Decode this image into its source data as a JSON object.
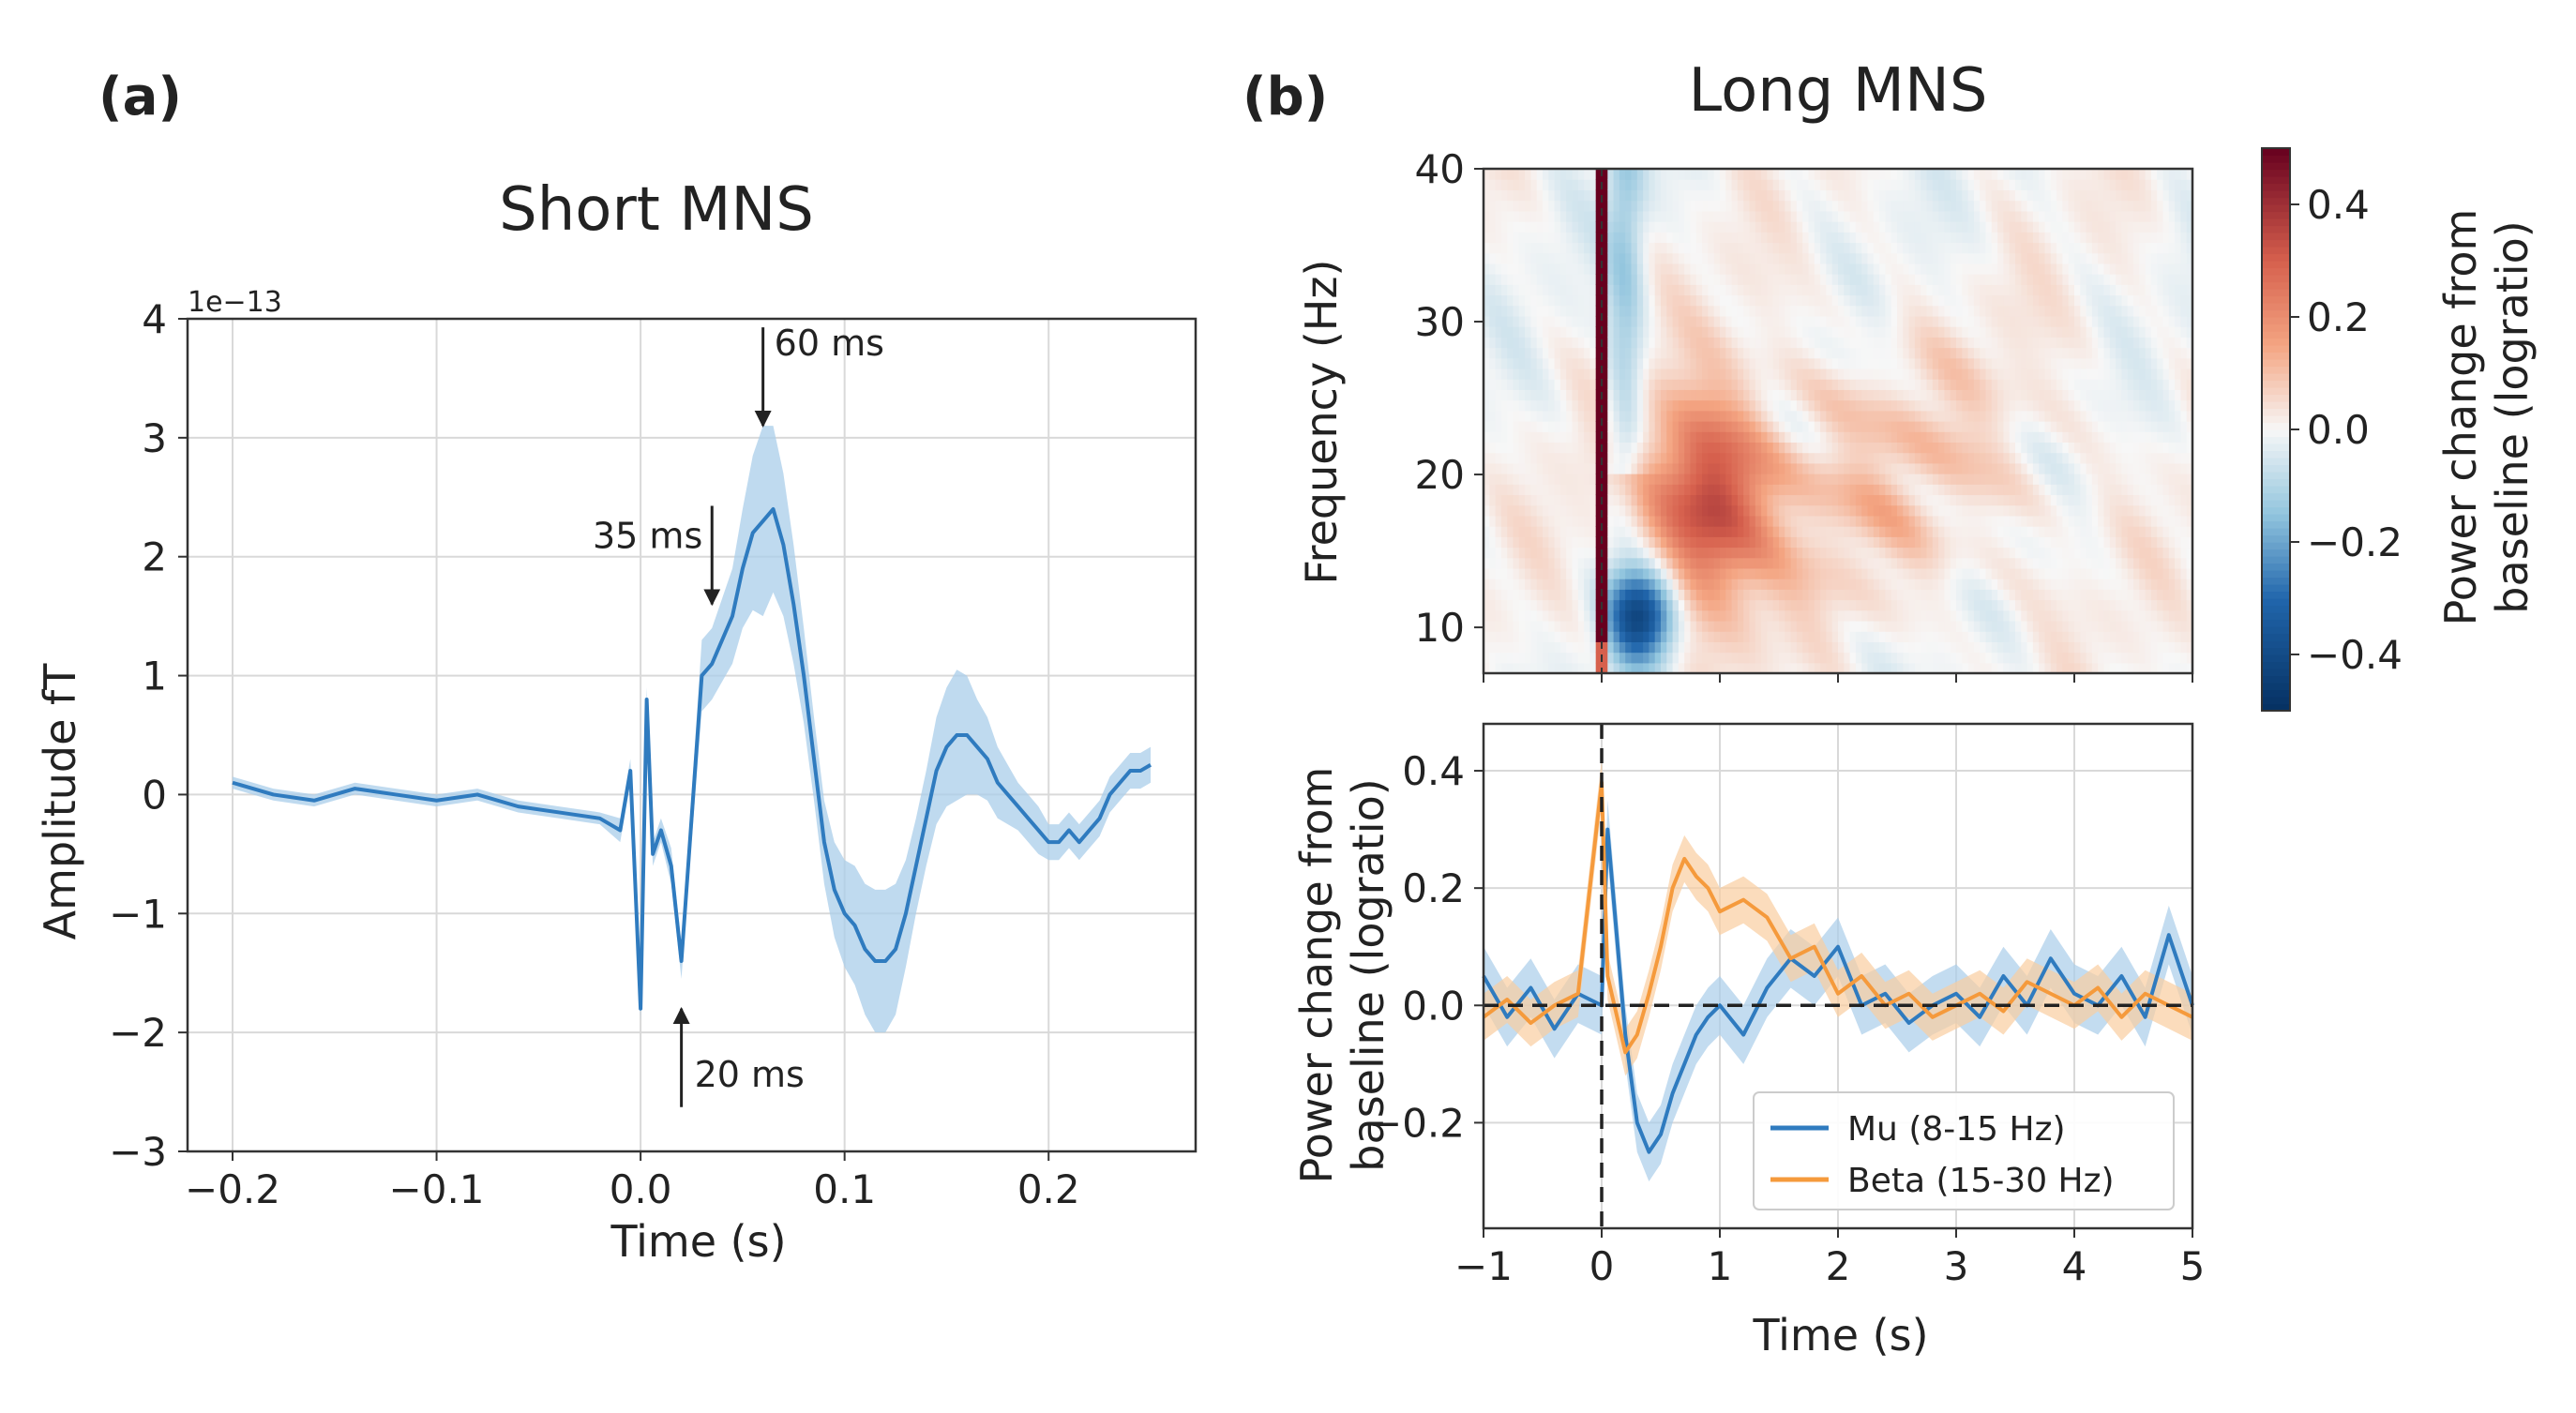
{
  "chart_data": [
    {
      "panel_label": "(a)",
      "type": "line",
      "title": "Short MNS",
      "xlabel": "Time (s)",
      "ylabel": "Amplitude fT",
      "y_scale_factor": "1e−13",
      "xlim": [
        -0.2,
        0.25
      ],
      "ylim": [
        -3,
        4
      ],
      "xticks": [
        -0.2,
        -0.1,
        0.0,
        0.1,
        0.2
      ],
      "xtick_labels": [
        "−0.2",
        "−0.1",
        "0.0",
        "0.1",
        "0.2"
      ],
      "yticks": [
        -3,
        -2,
        -1,
        0,
        1,
        2,
        3,
        4
      ],
      "ytick_labels": [
        "−3",
        "−2",
        "−1",
        "0",
        "1",
        "2",
        "3",
        "4"
      ],
      "grid": true,
      "color": "#2f7bbf",
      "band_color": "#a9cde9",
      "x": [
        -0.2,
        -0.18,
        -0.16,
        -0.14,
        -0.12,
        -0.1,
        -0.08,
        -0.06,
        -0.04,
        -0.02,
        -0.01,
        -0.005,
        0.0,
        0.003,
        0.006,
        0.01,
        0.015,
        0.02,
        0.025,
        0.03,
        0.035,
        0.04,
        0.045,
        0.05,
        0.055,
        0.06,
        0.065,
        0.07,
        0.075,
        0.08,
        0.085,
        0.09,
        0.095,
        0.1,
        0.105,
        0.11,
        0.115,
        0.12,
        0.125,
        0.13,
        0.135,
        0.14,
        0.145,
        0.15,
        0.155,
        0.16,
        0.165,
        0.17,
        0.175,
        0.18,
        0.185,
        0.19,
        0.195,
        0.2,
        0.205,
        0.21,
        0.215,
        0.22,
        0.225,
        0.23,
        0.235,
        0.24,
        0.245,
        0.25
      ],
      "y": [
        0.1,
        0.0,
        -0.05,
        0.05,
        0.0,
        -0.05,
        0.0,
        -0.1,
        -0.15,
        -0.2,
        -0.3,
        0.2,
        -1.8,
        0.8,
        -0.5,
        -0.3,
        -0.6,
        -1.4,
        -0.2,
        1.0,
        1.1,
        1.3,
        1.5,
        1.9,
        2.2,
        2.3,
        2.4,
        2.1,
        1.6,
        1.0,
        0.3,
        -0.4,
        -0.8,
        -1.0,
        -1.1,
        -1.3,
        -1.4,
        -1.4,
        -1.3,
        -1.0,
        -0.6,
        -0.2,
        0.2,
        0.4,
        0.5,
        0.5,
        0.4,
        0.3,
        0.1,
        0.0,
        -0.1,
        -0.2,
        -0.3,
        -0.4,
        -0.4,
        -0.3,
        -0.4,
        -0.3,
        -0.2,
        0.0,
        0.1,
        0.2,
        0.2,
        0.25
      ],
      "band": [
        0.05,
        0.05,
        0.05,
        0.05,
        0.05,
        0.05,
        0.05,
        0.05,
        0.05,
        0.05,
        0.1,
        0.1,
        0.1,
        0.1,
        0.1,
        0.1,
        0.15,
        0.15,
        0.2,
        0.3,
        0.3,
        0.35,
        0.4,
        0.5,
        0.65,
        0.8,
        0.7,
        0.6,
        0.5,
        0.4,
        0.35,
        0.35,
        0.4,
        0.45,
        0.5,
        0.55,
        0.6,
        0.6,
        0.55,
        0.45,
        0.4,
        0.4,
        0.45,
        0.5,
        0.55,
        0.5,
        0.4,
        0.35,
        0.3,
        0.25,
        0.2,
        0.2,
        0.2,
        0.15,
        0.15,
        0.15,
        0.15,
        0.15,
        0.15,
        0.15,
        0.15,
        0.15,
        0.15,
        0.15
      ],
      "annotations": [
        {
          "text": "60 ms",
          "x": 0.06,
          "y": 3.1,
          "direction": "down"
        },
        {
          "text": "35 ms",
          "x": 0.035,
          "y": 1.6,
          "direction": "down"
        },
        {
          "text": "20 ms",
          "x": 0.02,
          "y": -1.8,
          "direction": "up"
        }
      ]
    },
    {
      "panel_label": "(b)",
      "type": "heatmap",
      "title": "Long MNS",
      "xlabel": "",
      "ylabel": "Frequency (Hz)",
      "xlim": [
        -1,
        5
      ],
      "ylim": [
        7,
        40
      ],
      "yticks": [
        10,
        20,
        30,
        40
      ],
      "ytick_labels": [
        "10",
        "20",
        "30",
        "40"
      ],
      "colorbar_label": "Power change from baseline (logratio)",
      "colorbar_label_lines": [
        "Power change from",
        "baseline (logratio)"
      ],
      "colorbar_range": [
        -0.5,
        0.5
      ],
      "colorbar_ticks": [
        0.4,
        0.2,
        0.0,
        -0.2,
        -0.4
      ],
      "colorbar_tick_labels": [
        "0.4",
        "0.2",
        "0.0",
        "−0.2",
        "−0.4"
      ],
      "colormap": "RdBu_r",
      "features": [
        {
          "description_value": "stimulus artifact",
          "t": 0.0,
          "f_range": [
            7,
            40
          ],
          "value": 0.5
        },
        {
          "description_value": "beta rebound",
          "t_center": 0.9,
          "f_center": 18,
          "value": 0.35
        },
        {
          "description_value": "mu desynchronization",
          "t_center": 0.35,
          "f_center": 11,
          "value": -0.4
        }
      ]
    },
    {
      "type": "line",
      "xlabel": "Time (s)",
      "ylabel": "Power change from baseline (logratio)",
      "ylabel_lines": [
        "Power change from",
        "baseline (logratio)"
      ],
      "xlim": [
        -1,
        5
      ],
      "ylim": [
        -0.38,
        0.48
      ],
      "xticks": [
        -1,
        0,
        1,
        2,
        3,
        4,
        5
      ],
      "xtick_labels": [
        "−1",
        "0",
        "1",
        "2",
        "3",
        "4",
        "5"
      ],
      "yticks": [
        -0.2,
        0.0,
        0.2,
        0.4
      ],
      "ytick_labels": [
        "−0.2",
        "0.0",
        "0.2",
        "0.4"
      ],
      "grid": true,
      "legend_position": "lower-right",
      "series": [
        {
          "name": "Mu (8-15 Hz)",
          "color": "#2f7bbf",
          "band_color": "#a9cde9",
          "x": [
            -1,
            -0.8,
            -0.6,
            -0.4,
            -0.2,
            0.0,
            0.05,
            0.2,
            0.3,
            0.4,
            0.5,
            0.6,
            0.7,
            0.8,
            0.9,
            1.0,
            1.2,
            1.4,
            1.6,
            1.8,
            2.0,
            2.2,
            2.4,
            2.6,
            2.8,
            3.0,
            3.2,
            3.4,
            3.6,
            3.8,
            4.0,
            4.2,
            4.4,
            4.6,
            4.8,
            5.0
          ],
          "y": [
            0.05,
            -0.02,
            0.03,
            -0.04,
            0.02,
            0.0,
            0.3,
            -0.05,
            -0.2,
            -0.25,
            -0.22,
            -0.15,
            -0.1,
            -0.05,
            -0.02,
            0.0,
            -0.05,
            0.03,
            0.08,
            0.05,
            0.1,
            0.0,
            0.02,
            -0.03,
            0.0,
            0.02,
            -0.02,
            0.05,
            0.0,
            0.08,
            0.02,
            0.0,
            0.05,
            -0.02,
            0.12,
            0.0
          ],
          "band": 0.05
        },
        {
          "name": "Beta (15-30 Hz)",
          "color": "#f59a3c",
          "band_color": "#f9cd9f",
          "x": [
            -1,
            -0.8,
            -0.6,
            -0.4,
            -0.2,
            0.0,
            0.05,
            0.2,
            0.3,
            0.4,
            0.5,
            0.6,
            0.7,
            0.8,
            0.9,
            1.0,
            1.2,
            1.4,
            1.6,
            1.8,
            2.0,
            2.2,
            2.4,
            2.6,
            2.8,
            3.0,
            3.2,
            3.4,
            3.6,
            3.8,
            4.0,
            4.2,
            4.4,
            4.6,
            4.8,
            5.0
          ],
          "y": [
            -0.02,
            0.01,
            -0.03,
            0.0,
            0.02,
            0.38,
            0.05,
            -0.08,
            -0.05,
            0.02,
            0.1,
            0.2,
            0.25,
            0.22,
            0.2,
            0.16,
            0.18,
            0.15,
            0.08,
            0.1,
            0.02,
            0.05,
            0.0,
            0.02,
            -0.02,
            0.0,
            0.02,
            -0.01,
            0.04,
            0.02,
            0.0,
            0.03,
            -0.02,
            0.02,
            0.0,
            -0.02
          ],
          "band": 0.04
        }
      ],
      "reference_lines": {
        "h": 0.0,
        "v": 0.0
      }
    }
  ]
}
